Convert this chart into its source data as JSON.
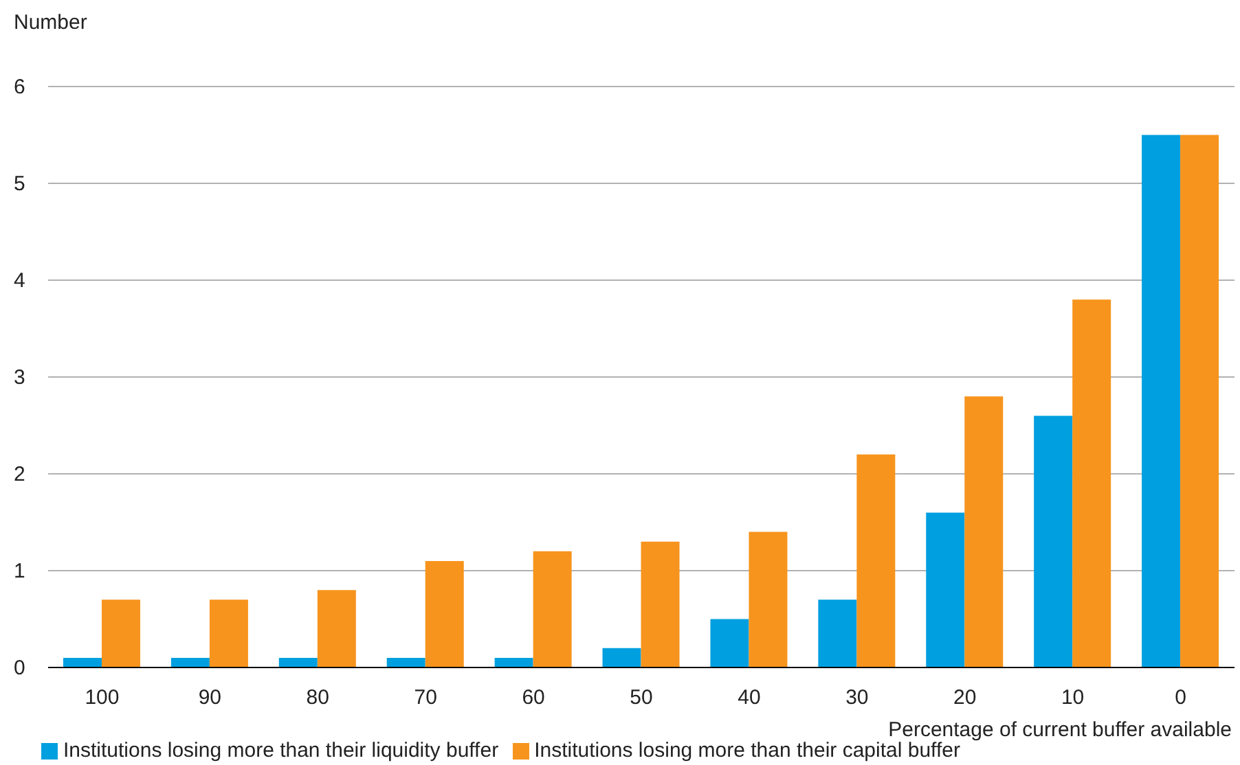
{
  "chart_data": {
    "type": "bar",
    "ylabel": "Number",
    "xlabel": "Percentage of current buffer available",
    "categories": [
      "100",
      "90",
      "80",
      "70",
      "60",
      "50",
      "40",
      "30",
      "20",
      "10",
      "0"
    ],
    "series": [
      {
        "name": "Institutions losing more than their liquidity buffer",
        "color": "#009fdf",
        "values": [
          0.1,
          0.1,
          0.1,
          0.1,
          0.1,
          0.2,
          0.5,
          0.7,
          1.6,
          2.6,
          5.5
        ]
      },
      {
        "name": "Institutions losing more than their capital buffer",
        "color": "#f7941d",
        "values": [
          0.7,
          0.7,
          0.8,
          1.1,
          1.2,
          1.3,
          1.4,
          2.2,
          2.8,
          3.8,
          5.5
        ]
      }
    ],
    "ylim": [
      0,
      6
    ],
    "yticks": [
      0,
      1,
      2,
      3,
      4,
      5,
      6
    ],
    "grid": "y",
    "legend": "bottom left"
  }
}
